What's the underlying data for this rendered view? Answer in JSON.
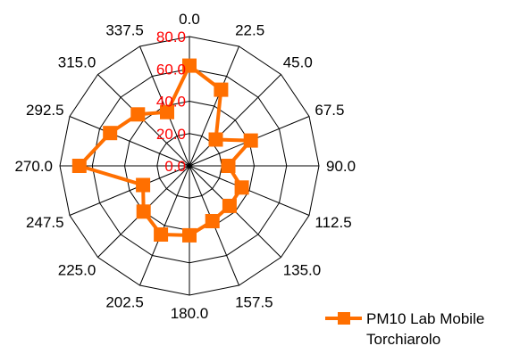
{
  "chart_data": {
    "type": "radar",
    "directions": [
      "0.0",
      "22.5",
      "45.0",
      "67.5",
      "90.0",
      "112.5",
      "135.0",
      "157.5",
      "180.0",
      "202.5",
      "225.0",
      "247.5",
      "270.0",
      "292.5",
      "315.0",
      "337.5"
    ],
    "r_ticks": [
      "0.0",
      "20.0",
      "40.0",
      "60.0",
      "80.0"
    ],
    "r_range": [
      0,
      80
    ],
    "grid": true,
    "series": [
      {
        "name": "PM10 Lab Mobile Torchiarolo",
        "values": [
          62,
          51,
          23,
          41,
          24,
          35,
          35,
          37,
          43,
          46,
          40,
          31,
          68,
          53,
          45,
          36
        ]
      }
    ],
    "legend": {
      "position": "bottom-right",
      "lines": [
        "PM10 Lab Mobile",
        "Torchiarolo"
      ]
    },
    "colors": {
      "series": "#ff6f00",
      "r_tick_labels": "#ff0000",
      "grid": "#000000"
    }
  }
}
